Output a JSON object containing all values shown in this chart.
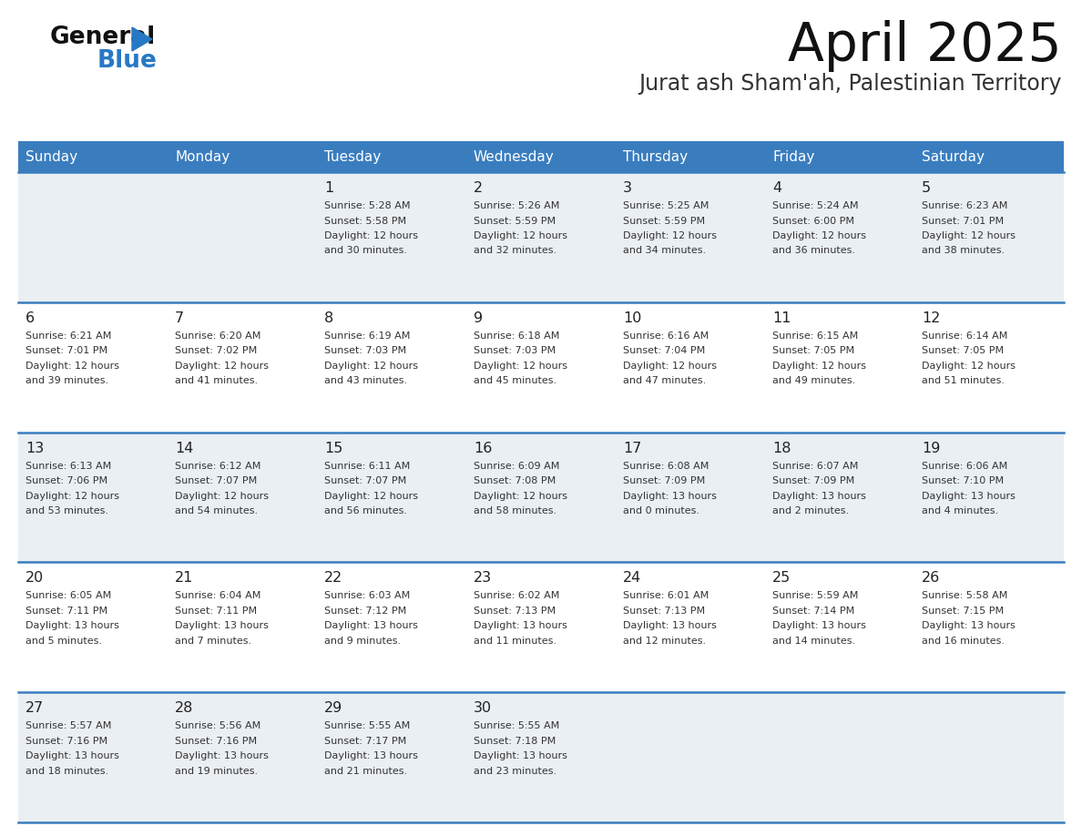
{
  "title": "April 2025",
  "subtitle": "Jurat ash Sham'ah, Palestinian Territory",
  "header_bg_color": "#3A7DBF",
  "header_text_color": "#FFFFFF",
  "header_days": [
    "Sunday",
    "Monday",
    "Tuesday",
    "Wednesday",
    "Thursday",
    "Friday",
    "Saturday"
  ],
  "row_bg_even": "#EAEFF4",
  "row_bg_odd": "#FFFFFF",
  "divider_color": "#3A7DBF",
  "day_number_color": "#222222",
  "cell_text_color": "#333333",
  "background_color": "#FFFFFF",
  "logo_general_color": "#111111",
  "logo_blue_color": "#2778C4",
  "days": [
    {
      "date": 1,
      "col": 2,
      "row": 0,
      "sunrise": "5:28 AM",
      "sunset": "5:58 PM",
      "daylight_hours": 12,
      "daylight_minutes": 30
    },
    {
      "date": 2,
      "col": 3,
      "row": 0,
      "sunrise": "5:26 AM",
      "sunset": "5:59 PM",
      "daylight_hours": 12,
      "daylight_minutes": 32
    },
    {
      "date": 3,
      "col": 4,
      "row": 0,
      "sunrise": "5:25 AM",
      "sunset": "5:59 PM",
      "daylight_hours": 12,
      "daylight_minutes": 34
    },
    {
      "date": 4,
      "col": 5,
      "row": 0,
      "sunrise": "5:24 AM",
      "sunset": "6:00 PM",
      "daylight_hours": 12,
      "daylight_minutes": 36
    },
    {
      "date": 5,
      "col": 6,
      "row": 0,
      "sunrise": "6:23 AM",
      "sunset": "7:01 PM",
      "daylight_hours": 12,
      "daylight_minutes": 38
    },
    {
      "date": 6,
      "col": 0,
      "row": 1,
      "sunrise": "6:21 AM",
      "sunset": "7:01 PM",
      "daylight_hours": 12,
      "daylight_minutes": 39
    },
    {
      "date": 7,
      "col": 1,
      "row": 1,
      "sunrise": "6:20 AM",
      "sunset": "7:02 PM",
      "daylight_hours": 12,
      "daylight_minutes": 41
    },
    {
      "date": 8,
      "col": 2,
      "row": 1,
      "sunrise": "6:19 AM",
      "sunset": "7:03 PM",
      "daylight_hours": 12,
      "daylight_minutes": 43
    },
    {
      "date": 9,
      "col": 3,
      "row": 1,
      "sunrise": "6:18 AM",
      "sunset": "7:03 PM",
      "daylight_hours": 12,
      "daylight_minutes": 45
    },
    {
      "date": 10,
      "col": 4,
      "row": 1,
      "sunrise": "6:16 AM",
      "sunset": "7:04 PM",
      "daylight_hours": 12,
      "daylight_minutes": 47
    },
    {
      "date": 11,
      "col": 5,
      "row": 1,
      "sunrise": "6:15 AM",
      "sunset": "7:05 PM",
      "daylight_hours": 12,
      "daylight_minutes": 49
    },
    {
      "date": 12,
      "col": 6,
      "row": 1,
      "sunrise": "6:14 AM",
      "sunset": "7:05 PM",
      "daylight_hours": 12,
      "daylight_minutes": 51
    },
    {
      "date": 13,
      "col": 0,
      "row": 2,
      "sunrise": "6:13 AM",
      "sunset": "7:06 PM",
      "daylight_hours": 12,
      "daylight_minutes": 53
    },
    {
      "date": 14,
      "col": 1,
      "row": 2,
      "sunrise": "6:12 AM",
      "sunset": "7:07 PM",
      "daylight_hours": 12,
      "daylight_minutes": 54
    },
    {
      "date": 15,
      "col": 2,
      "row": 2,
      "sunrise": "6:11 AM",
      "sunset": "7:07 PM",
      "daylight_hours": 12,
      "daylight_minutes": 56
    },
    {
      "date": 16,
      "col": 3,
      "row": 2,
      "sunrise": "6:09 AM",
      "sunset": "7:08 PM",
      "daylight_hours": 12,
      "daylight_minutes": 58
    },
    {
      "date": 17,
      "col": 4,
      "row": 2,
      "sunrise": "6:08 AM",
      "sunset": "7:09 PM",
      "daylight_hours": 13,
      "daylight_minutes": 0
    },
    {
      "date": 18,
      "col": 5,
      "row": 2,
      "sunrise": "6:07 AM",
      "sunset": "7:09 PM",
      "daylight_hours": 13,
      "daylight_minutes": 2
    },
    {
      "date": 19,
      "col": 6,
      "row": 2,
      "sunrise": "6:06 AM",
      "sunset": "7:10 PM",
      "daylight_hours": 13,
      "daylight_minutes": 4
    },
    {
      "date": 20,
      "col": 0,
      "row": 3,
      "sunrise": "6:05 AM",
      "sunset": "7:11 PM",
      "daylight_hours": 13,
      "daylight_minutes": 5
    },
    {
      "date": 21,
      "col": 1,
      "row": 3,
      "sunrise": "6:04 AM",
      "sunset": "7:11 PM",
      "daylight_hours": 13,
      "daylight_minutes": 7
    },
    {
      "date": 22,
      "col": 2,
      "row": 3,
      "sunrise": "6:03 AM",
      "sunset": "7:12 PM",
      "daylight_hours": 13,
      "daylight_minutes": 9
    },
    {
      "date": 23,
      "col": 3,
      "row": 3,
      "sunrise": "6:02 AM",
      "sunset": "7:13 PM",
      "daylight_hours": 13,
      "daylight_minutes": 11
    },
    {
      "date": 24,
      "col": 4,
      "row": 3,
      "sunrise": "6:01 AM",
      "sunset": "7:13 PM",
      "daylight_hours": 13,
      "daylight_minutes": 12
    },
    {
      "date": 25,
      "col": 5,
      "row": 3,
      "sunrise": "5:59 AM",
      "sunset": "7:14 PM",
      "daylight_hours": 13,
      "daylight_minutes": 14
    },
    {
      "date": 26,
      "col": 6,
      "row": 3,
      "sunrise": "5:58 AM",
      "sunset": "7:15 PM",
      "daylight_hours": 13,
      "daylight_minutes": 16
    },
    {
      "date": 27,
      "col": 0,
      "row": 4,
      "sunrise": "5:57 AM",
      "sunset": "7:16 PM",
      "daylight_hours": 13,
      "daylight_minutes": 18
    },
    {
      "date": 28,
      "col": 1,
      "row": 4,
      "sunrise": "5:56 AM",
      "sunset": "7:16 PM",
      "daylight_hours": 13,
      "daylight_minutes": 19
    },
    {
      "date": 29,
      "col": 2,
      "row": 4,
      "sunrise": "5:55 AM",
      "sunset": "7:17 PM",
      "daylight_hours": 13,
      "daylight_minutes": 21
    },
    {
      "date": 30,
      "col": 3,
      "row": 4,
      "sunrise": "5:55 AM",
      "sunset": "7:18 PM",
      "daylight_hours": 13,
      "daylight_minutes": 23
    }
  ]
}
